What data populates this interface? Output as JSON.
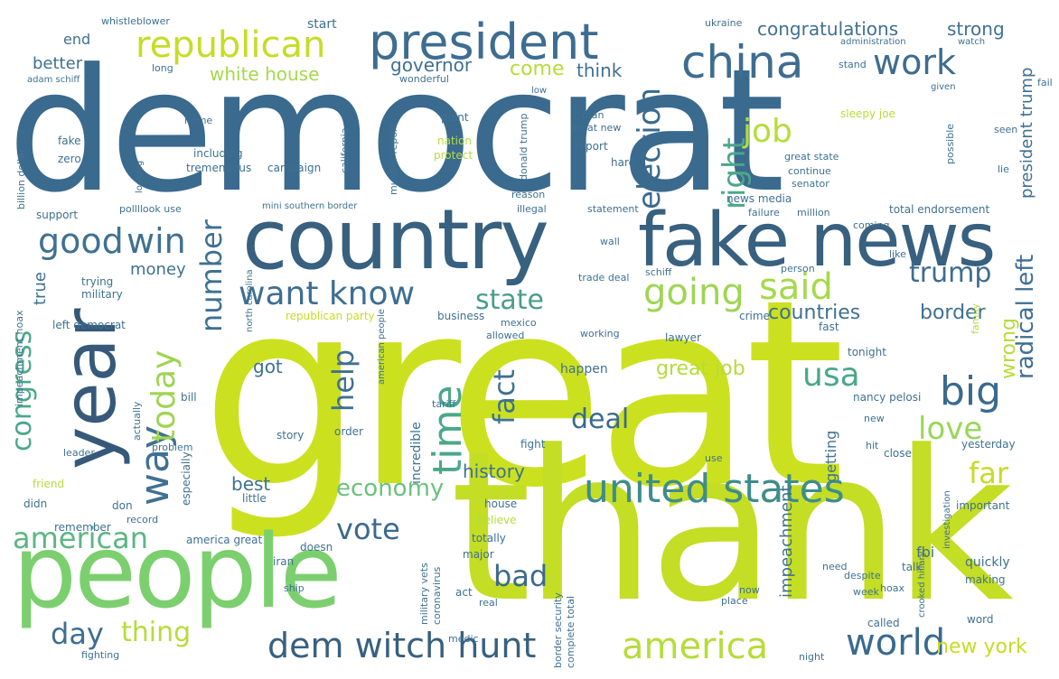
{
  "words": [
    {
      "text": "democrat",
      "color": "#3a6a8e"
    },
    {
      "text": "great",
      "color": "#cbe11f"
    },
    {
      "text": "thank",
      "color": "#c4dd25"
    },
    {
      "text": "people",
      "color": "#7ccf6e"
    },
    {
      "text": "country",
      "color": "#38607f"
    },
    {
      "text": "fake news",
      "color": "#38607f"
    },
    {
      "text": "year",
      "color": "#36597a"
    },
    {
      "text": "president",
      "color": "#3d6d90"
    },
    {
      "text": "republican",
      "color": "#c4dd25"
    },
    {
      "text": "china",
      "color": "#3d6d90"
    },
    {
      "text": "united states",
      "color": "#3e8c8c"
    },
    {
      "text": "dem witch hunt",
      "color": "#38607f"
    },
    {
      "text": "want know",
      "color": "#3e6e92"
    },
    {
      "text": "going",
      "color": "#9fd552"
    },
    {
      "text": "said",
      "color": "#a5d94b"
    },
    {
      "text": "good",
      "color": "#3f7191"
    },
    {
      "text": "win",
      "color": "#3f7191"
    },
    {
      "text": "time",
      "color": "#4aa889"
    },
    {
      "text": "america",
      "color": "#b6dc3b"
    },
    {
      "text": "world",
      "color": "#3a6a8e"
    },
    {
      "text": "american",
      "color": "#5cb685"
    },
    {
      "text": "way",
      "color": "#3f7191"
    },
    {
      "text": "today",
      "color": "#a0d454"
    },
    {
      "text": "big",
      "color": "#3a6a8e"
    },
    {
      "text": "work",
      "color": "#3d6d90"
    },
    {
      "text": "election",
      "color": "#3a6a8e"
    },
    {
      "text": "right",
      "color": "#4aa889"
    },
    {
      "text": "job",
      "color": "#b6dc3b"
    },
    {
      "text": "state",
      "color": "#4a9d8a"
    },
    {
      "text": "trump",
      "color": "#3d6d90"
    },
    {
      "text": "number",
      "color": "#3f7191"
    },
    {
      "text": "help",
      "color": "#3f7191"
    },
    {
      "text": "fact",
      "color": "#3f7191"
    },
    {
      "text": "usa",
      "color": "#4aa889"
    },
    {
      "text": "congress",
      "color": "#4aa889"
    },
    {
      "text": "love",
      "color": "#9ad65a"
    },
    {
      "text": "deal",
      "color": "#3a6a8e"
    },
    {
      "text": "bad",
      "color": "#3a6a8e"
    },
    {
      "text": "vote",
      "color": "#3a6a8e"
    },
    {
      "text": "economy",
      "color": "#6bc17e"
    },
    {
      "text": "thing",
      "color": "#b6dc3b"
    },
    {
      "text": "day",
      "color": "#3e6e92"
    },
    {
      "text": "far",
      "color": "#c4dd25"
    },
    {
      "text": "radical left",
      "color": "#3e6e92"
    },
    {
      "text": "wrong",
      "color": "#b6dc3b"
    },
    {
      "text": "new york",
      "color": "#c4dd25"
    },
    {
      "text": "border",
      "color": "#3f7191"
    },
    {
      "text": "countries",
      "color": "#3f7191"
    },
    {
      "text": "history",
      "color": "#3f7191"
    },
    {
      "text": "great job",
      "color": "#b6dc3b"
    },
    {
      "text": "congratulations",
      "color": "#3f7191"
    },
    {
      "text": "strong",
      "color": "#3f7191"
    },
    {
      "text": "white house",
      "color": "#a5d94b"
    },
    {
      "text": "governor",
      "color": "#3f7191"
    },
    {
      "text": "come",
      "color": "#b6dc3b"
    },
    {
      "text": "think",
      "color": "#3f7191"
    },
    {
      "text": "better",
      "color": "#3f7191"
    },
    {
      "text": "end",
      "color": "#3f7191"
    },
    {
      "text": "start",
      "color": "#3f7191"
    },
    {
      "text": "money",
      "color": "#3f7191"
    },
    {
      "text": "true",
      "color": "#3f7191"
    },
    {
      "text": "got",
      "color": "#3f7191"
    },
    {
      "text": "best",
      "color": "#3f7191"
    },
    {
      "text": "incredible",
      "color": "#3f7191"
    },
    {
      "text": "impeachment",
      "color": "#3f7191"
    },
    {
      "text": "getting",
      "color": "#3f7191"
    },
    {
      "text": "president trump",
      "color": "#3f7191"
    },
    {
      "text": "total endorsement",
      "color": "#3f7191"
    },
    {
      "text": "fbi",
      "color": "#3f7191"
    },
    {
      "text": "tonight",
      "color": "#3f7191"
    },
    {
      "text": "nancy pelosi",
      "color": "#3f7191"
    },
    {
      "text": "happen",
      "color": "#3f7191"
    },
    {
      "text": "fast",
      "color": "#3f7191"
    },
    {
      "text": "lawyer",
      "color": "#3f7191"
    },
    {
      "text": "crime",
      "color": "#3f7191"
    },
    {
      "text": "business",
      "color": "#3f7191"
    },
    {
      "text": "republican party",
      "color": "#c4dd25"
    },
    {
      "text": "story",
      "color": "#3f7191"
    },
    {
      "text": "quickly",
      "color": "#3f7191"
    },
    {
      "text": "making",
      "color": "#3f7191"
    },
    {
      "text": "called",
      "color": "#3f7191"
    },
    {
      "text": "word",
      "color": "#3f7191"
    },
    {
      "text": "america great",
      "color": "#3f7191"
    },
    {
      "text": "military vets",
      "color": "#3f7191"
    },
    {
      "text": "coronavirus",
      "color": "#3f7191"
    },
    {
      "text": "border security",
      "color": "#3f7191"
    },
    {
      "text": "complete total",
      "color": "#3f7191"
    },
    {
      "text": "totally",
      "color": "#3f7191"
    },
    {
      "text": "major",
      "color": "#3f7191"
    },
    {
      "text": "iran",
      "color": "#3f7191"
    },
    {
      "text": "doesn",
      "color": "#3f7191"
    },
    {
      "text": "remember",
      "color": "#3f7191"
    },
    {
      "text": "little",
      "color": "#3f7191"
    },
    {
      "text": "house",
      "color": "#3f7191"
    },
    {
      "text": "believe",
      "color": "#b6dc3b"
    },
    {
      "text": "fight",
      "color": "#3f7191"
    },
    {
      "text": "order",
      "color": "#3f7191"
    },
    {
      "text": "especially",
      "color": "#3f7191"
    },
    {
      "text": "actually",
      "color": "#3f7191"
    },
    {
      "text": "problem",
      "color": "#3f7191"
    },
    {
      "text": "bill",
      "color": "#3f7191"
    },
    {
      "text": "trying",
      "color": "#3f7191"
    },
    {
      "text": "military",
      "color": "#3f7191"
    },
    {
      "text": "left democrat",
      "color": "#3f7191"
    },
    {
      "text": "support",
      "color": "#3f7191"
    },
    {
      "text": "billion dollar",
      "color": "#3f7191"
    },
    {
      "text": "fake",
      "color": "#3f7191"
    },
    {
      "text": "zero",
      "color": "#3f7191"
    },
    {
      "text": "home",
      "color": "#3f7191"
    },
    {
      "text": "including",
      "color": "#3f7191"
    },
    {
      "text": "tremendous",
      "color": "#3f7191"
    },
    {
      "text": "campaign",
      "color": "#3f7191"
    },
    {
      "text": "california",
      "color": "#3f7191"
    },
    {
      "text": "nation",
      "color": "#b6dc3b"
    },
    {
      "text": "protect",
      "color": "#b6dc3b"
    },
    {
      "text": "mueller report",
      "color": "#3f7191"
    },
    {
      "text": "donald trump",
      "color": "#3f7191"
    },
    {
      "text": "report",
      "color": "#3f7191"
    },
    {
      "text": "hard",
      "color": "#3f7191"
    },
    {
      "text": "great new",
      "color": "#3f7191"
    },
    {
      "text": "man",
      "color": "#3f7191"
    },
    {
      "text": "point",
      "color": "#3f7191"
    },
    {
      "text": "sleepy joe",
      "color": "#b6dc3b"
    },
    {
      "text": "great state",
      "color": "#3f7191"
    },
    {
      "text": "continue",
      "color": "#3f7191"
    },
    {
      "text": "senator",
      "color": "#3f7191"
    },
    {
      "text": "news media",
      "color": "#3f7191"
    },
    {
      "text": "failure",
      "color": "#3f7191"
    },
    {
      "text": "million",
      "color": "#3f7191"
    },
    {
      "text": "possible",
      "color": "#3f7191"
    },
    {
      "text": "seen",
      "color": "#3f7191"
    },
    {
      "text": "lie",
      "color": "#3f7191"
    },
    {
      "text": "statement",
      "color": "#3f7191"
    },
    {
      "text": "illegal",
      "color": "#3f7191"
    },
    {
      "text": "reason",
      "color": "#3f7191"
    },
    {
      "text": "mini southern border",
      "color": "#3f7191"
    },
    {
      "text": "pollllook use",
      "color": "#3f7191"
    },
    {
      "text": "coming",
      "color": "#3f7191"
    },
    {
      "text": "wall",
      "color": "#3f7191"
    },
    {
      "text": "schiff",
      "color": "#3f7191"
    },
    {
      "text": "person",
      "color": "#3f7191"
    },
    {
      "text": "trade deal",
      "color": "#3f7191"
    },
    {
      "text": "working",
      "color": "#3f7191"
    },
    {
      "text": "mexico",
      "color": "#3f7191"
    },
    {
      "text": "allowed",
      "color": "#3f7191"
    },
    {
      "text": "american people",
      "color": "#3f7191"
    },
    {
      "text": "north carolina",
      "color": "#3f7191"
    },
    {
      "text": "impeachment hoax",
      "color": "#3f7191"
    },
    {
      "text": "leader",
      "color": "#3f7191"
    },
    {
      "text": "friend",
      "color": "#b6dc3b"
    },
    {
      "text": "didn",
      "color": "#3f7191"
    },
    {
      "text": "don",
      "color": "#3f7191"
    },
    {
      "text": "record",
      "color": "#3f7191"
    },
    {
      "text": "fighting",
      "color": "#3f7191"
    },
    {
      "text": "medic",
      "color": "#3f7191"
    },
    {
      "text": "act",
      "color": "#3f7191"
    },
    {
      "text": "real",
      "color": "#3f7191"
    },
    {
      "text": "need",
      "color": "#3f7191"
    },
    {
      "text": "despite",
      "color": "#3f7191"
    },
    {
      "text": "talk",
      "color": "#3f7191"
    },
    {
      "text": "hoax",
      "color": "#3f7191"
    },
    {
      "text": "crooked hillary",
      "color": "#3f7191"
    },
    {
      "text": "investigation",
      "color": "#3f7191"
    },
    {
      "text": "important",
      "color": "#3f7191"
    },
    {
      "text": "yesterday",
      "color": "#3f7191"
    },
    {
      "text": "close",
      "color": "#3f7191"
    },
    {
      "text": "hit",
      "color": "#3f7191"
    },
    {
      "text": "family",
      "color": "#b6dc3b"
    },
    {
      "text": "like",
      "color": "#3f7191"
    },
    {
      "text": "new",
      "color": "#3f7191"
    },
    {
      "text": "use",
      "color": "#3f7191"
    },
    {
      "text": "tariff",
      "color": "#3f7191"
    },
    {
      "text": "stand",
      "color": "#3f7191"
    },
    {
      "text": "administration",
      "color": "#3f7191"
    },
    {
      "text": "ukraine",
      "color": "#3f7191"
    },
    {
      "text": "whistleblower",
      "color": "#3f7191"
    },
    {
      "text": "long",
      "color": "#3f7191"
    },
    {
      "text": "adam schiff",
      "color": "#3f7191"
    },
    {
      "text": "wonderful",
      "color": "#3f7191"
    },
    {
      "text": "low",
      "color": "#3f7191"
    },
    {
      "text": "night",
      "color": "#3f7191"
    },
    {
      "text": "week",
      "color": "#3f7191"
    },
    {
      "text": "now",
      "color": "#3f7191"
    },
    {
      "text": "ship",
      "color": "#3f7191"
    },
    {
      "text": "fail",
      "color": "#3f7191"
    },
    {
      "text": "looking",
      "color": "#3f7191"
    },
    {
      "text": "watch",
      "color": "#3f7191"
    },
    {
      "text": "given",
      "color": "#3f7191"
    },
    {
      "text": "place",
      "color": "#3f7191"
    }
  ]
}
